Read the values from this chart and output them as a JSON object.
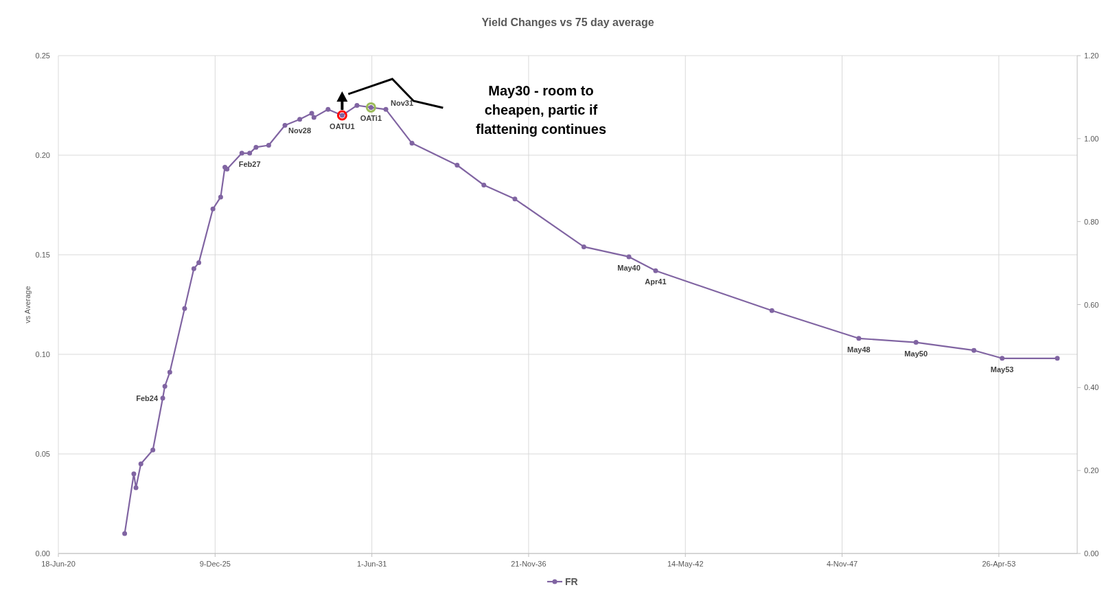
{
  "chart_data": {
    "type": "line",
    "title": "Yield Changes vs 75 day average",
    "ylabel": "vs Average",
    "x": [
      "2022-10-12",
      "2023-02-06",
      "2023-03-05",
      "2023-05-07",
      "2023-10-07",
      "2024-02-10",
      "2024-03-08",
      "2024-05-10",
      "2024-11-15",
      "2025-03-13",
      "2025-05-15",
      "2025-11-11",
      "2026-02-18",
      "2026-04-13",
      "2026-05-10",
      "2026-11-15",
      "2027-02-23",
      "2027-05-15",
      "2027-10-24",
      "2028-05-18",
      "2028-11-23",
      "2029-04-25",
      "2029-05-23",
      "2029-11-19",
      "2030-05-18",
      "2030-11-23",
      "2031-05-21",
      "2031-11-27",
      "2032-10-25",
      "2034-05-24",
      "2035-04-30",
      "2036-05-30",
      "2038-10-27",
      "2040-05-24",
      "2041-04-30",
      "2045-05-22",
      "2048-06-04",
      "2050-06-04",
      "2052-06-12",
      "2053-06-07",
      "2055-05-12"
    ],
    "series": [
      {
        "name": "FR",
        "color": "#8064a2",
        "values": [
          0.01,
          0.04,
          0.033,
          0.045,
          0.052,
          0.078,
          0.084,
          0.091,
          0.123,
          0.143,
          0.146,
          0.173,
          0.179,
          0.194,
          0.193,
          0.201,
          0.201,
          0.204,
          0.205,
          0.215,
          0.218,
          0.221,
          0.219,
          0.223,
          0.22,
          0.225,
          0.224,
          0.223,
          0.206,
          0.195,
          0.185,
          0.178,
          0.154,
          0.149,
          0.142,
          0.122,
          0.108,
          0.106,
          0.102,
          0.098,
          0.098
        ]
      }
    ],
    "xlim": [
      "2020-06-18",
      "2056-01-21"
    ],
    "xticks": [
      {
        "value": "2020-06-18",
        "label": "18-Jun-20"
      },
      {
        "value": "2025-12-09",
        "label": "9-Dec-25"
      },
      {
        "value": "2031-06-01",
        "label": "1-Jun-31"
      },
      {
        "value": "2036-11-21",
        "label": "21-Nov-36"
      },
      {
        "value": "2042-05-14",
        "label": "14-May-42"
      },
      {
        "value": "2047-11-04",
        "label": "4-Nov-47"
      },
      {
        "value": "2053-04-26",
        "label": "26-Apr-53"
      }
    ],
    "ylim": [
      0,
      0.25
    ],
    "yticks": [
      {
        "value": 0,
        "label": "0.00"
      },
      {
        "value": 0.05,
        "label": "0.05"
      },
      {
        "value": 0.1,
        "label": "0.10"
      },
      {
        "value": 0.15,
        "label": "0.15"
      },
      {
        "value": 0.2,
        "label": "0.20"
      },
      {
        "value": 0.25,
        "label": "0.25"
      }
    ],
    "y2lim": [
      0,
      1.2
    ],
    "y2ticks": [
      {
        "value": 0,
        "label": "0.00"
      },
      {
        "value": 0.2,
        "label": "0.20"
      },
      {
        "value": 0.4,
        "label": "0.40"
      },
      {
        "value": 0.6,
        "label": "0.60"
      },
      {
        "value": 0.8,
        "label": "0.80"
      },
      {
        "value": 1,
        "label": "1.00"
      },
      {
        "value": 1.2,
        "label": "1.20"
      }
    ],
    "annotations": [
      "May30 - room to cheapen, partic if flattening continues",
      {
        "text": "Feb24",
        "x": "2024-02-10",
        "y": 0.078
      },
      {
        "text": "Feb27",
        "x": "2027-02-23",
        "y": 0.201
      },
      {
        "text": "Nov28",
        "x": "2028-11-23",
        "y": 0.218
      },
      {
        "text": "OATU1",
        "x": "2030-05-18",
        "y": 0.22
      },
      {
        "text": "OATi1",
        "x": "2031-05-21",
        "y": 0.224
      },
      {
        "text": "Nov31",
        "x": "2031-11-27",
        "y": 0.223
      },
      {
        "text": "May40",
        "x": "2040-05-24",
        "y": 0.149
      },
      {
        "text": "Apr41",
        "x": "2041-04-30",
        "y": 0.142
      },
      {
        "text": "May48",
        "x": "2048-06-04",
        "y": 0.108
      },
      {
        "text": "May50",
        "x": "2050-06-04",
        "y": 0.106
      },
      {
        "text": "May53",
        "x": "2053-06-07",
        "y": 0.098
      }
    ],
    "grid": true,
    "legend": "bottom",
    "marker": "circle",
    "line_style": "solid"
  }
}
